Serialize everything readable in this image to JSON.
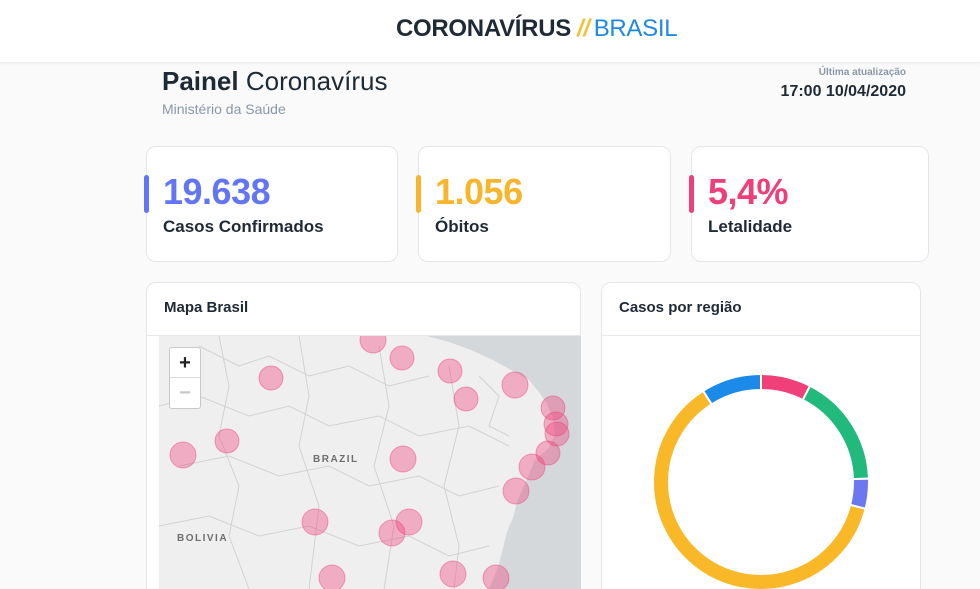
{
  "header": {
    "brand_main": "CORONAVÍRUS",
    "brand_sep": "//",
    "brand_country": "BRASIL"
  },
  "page": {
    "title_strong": "Painel",
    "title_rest": "Coronavírus",
    "subtitle": "Ministério da Saúde",
    "update_label": "Última atualização",
    "update_value": "17:00 10/04/2020"
  },
  "kpis": [
    {
      "value": "19.638",
      "label": "Casos Confirmados",
      "color": "#6275f5"
    },
    {
      "value": "1.056",
      "label": "Óbitos",
      "color": "#f6b52b"
    },
    {
      "value": "5,4%",
      "label": "Letalidade",
      "color": "#ee3f78"
    }
  ],
  "map_panel": {
    "title": "Mapa Brasil",
    "zoom_in": "+",
    "zoom_out": "−",
    "labels": {
      "brazil": "BRAZIL",
      "bolivia": "BOLIVIA"
    }
  },
  "chart_panel": {
    "title": "Casos por região"
  },
  "chart_data": {
    "type": "pie",
    "title": "Casos por região",
    "slices": [
      {
        "value": 7.5,
        "color": "#f0407a"
      },
      {
        "value": 17,
        "color": "#22b97d"
      },
      {
        "value": 4.5,
        "color": "#6b78f0"
      },
      {
        "value": 62,
        "color": "#f8b827"
      },
      {
        "value": 9,
        "color": "#1b8ae8"
      }
    ]
  }
}
